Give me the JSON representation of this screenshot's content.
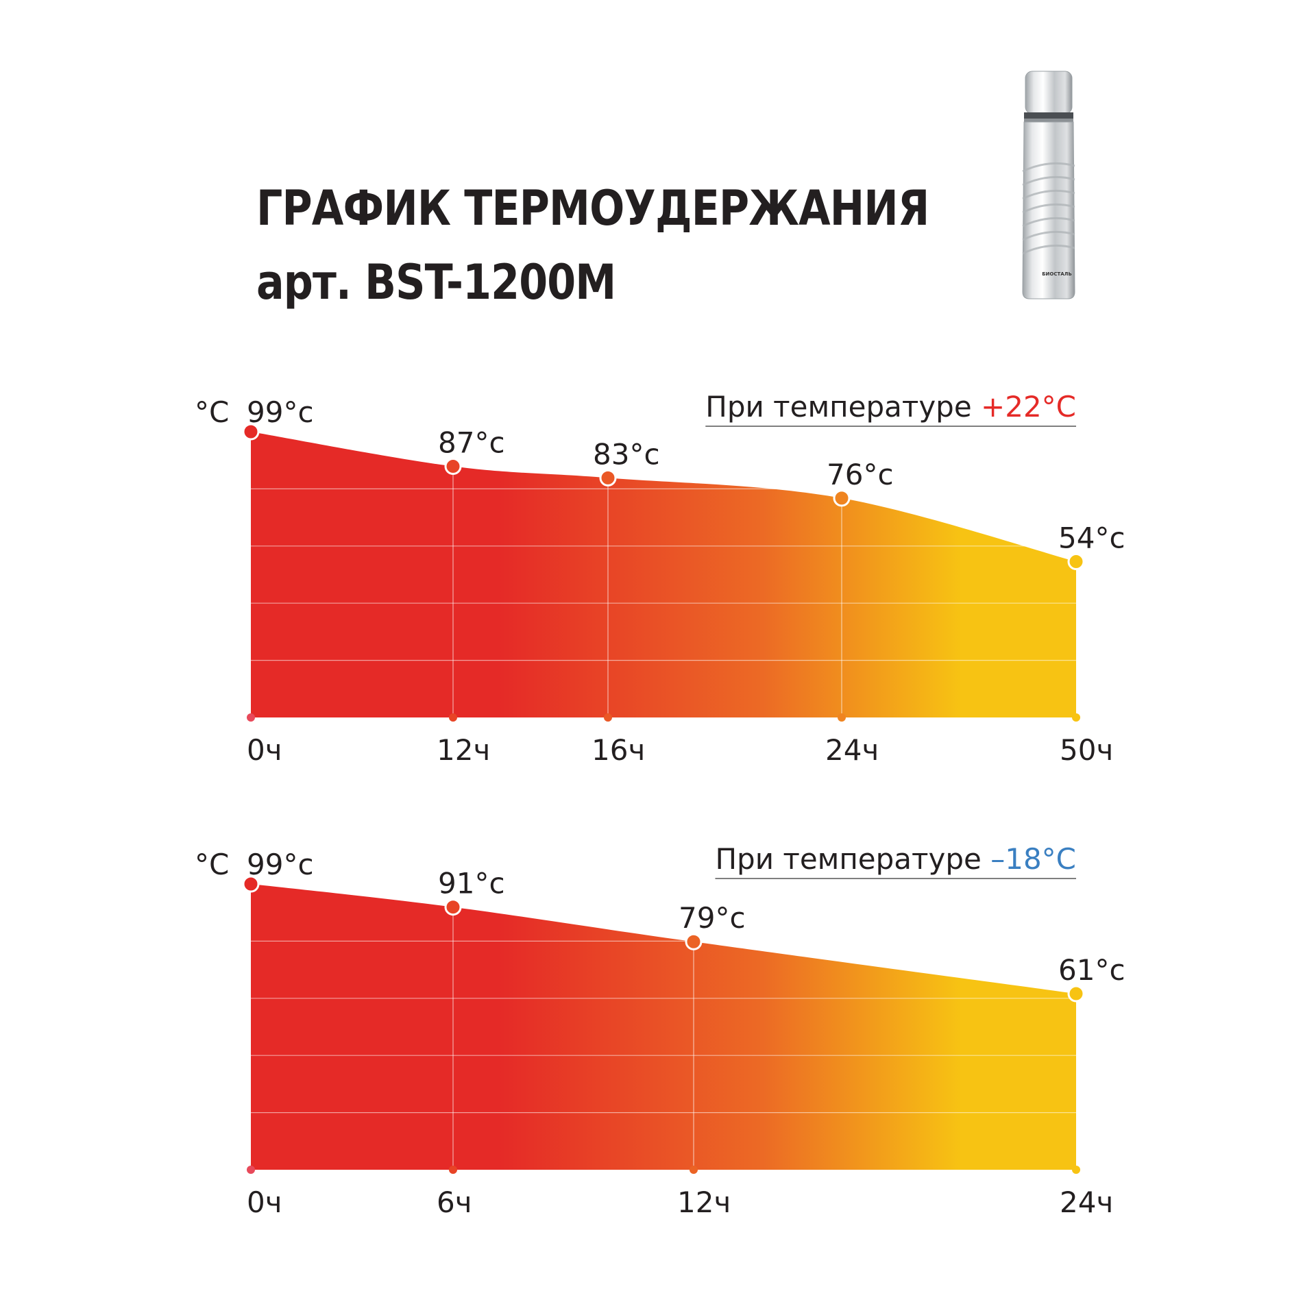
{
  "header": {
    "title_line1": "ГРАФИК ТЕРМОУДЕРЖАНИЯ",
    "title_line2": "арт. BST-1200M"
  },
  "product": {
    "brand_label": "БИОСТАЛЬ",
    "icon": "thermos-bottle-icon"
  },
  "colors": {
    "red": "#e52a27",
    "orange": "#ec6a25",
    "yellow": "#f7c313",
    "text": "#231f20",
    "ambient_warm": "#e52a27",
    "ambient_cold": "#3a7fc1"
  },
  "chart_data": [
    {
      "type": "area",
      "unit_label": "°C",
      "condition_prefix": "При температуре ",
      "condition_value": "+22°C",
      "categories": [
        "0ч",
        "12ч",
        "16ч",
        "24ч",
        "50ч"
      ],
      "values": [
        99,
        87,
        83,
        76,
        54
      ],
      "value_labels": [
        "99°c",
        "87°c",
        "83°c",
        "76°c",
        "54°c"
      ],
      "ylim": [
        0,
        99
      ]
    },
    {
      "type": "area",
      "unit_label": "°C",
      "condition_prefix": "При температуре ",
      "condition_value": "–18°C",
      "categories": [
        "0ч",
        "6ч",
        "12ч",
        "24ч"
      ],
      "values": [
        99,
        91,
        79,
        61
      ],
      "value_labels": [
        "99°c",
        "91°c",
        "79°c",
        "61°c"
      ],
      "ylim": [
        0,
        99
      ]
    }
  ]
}
